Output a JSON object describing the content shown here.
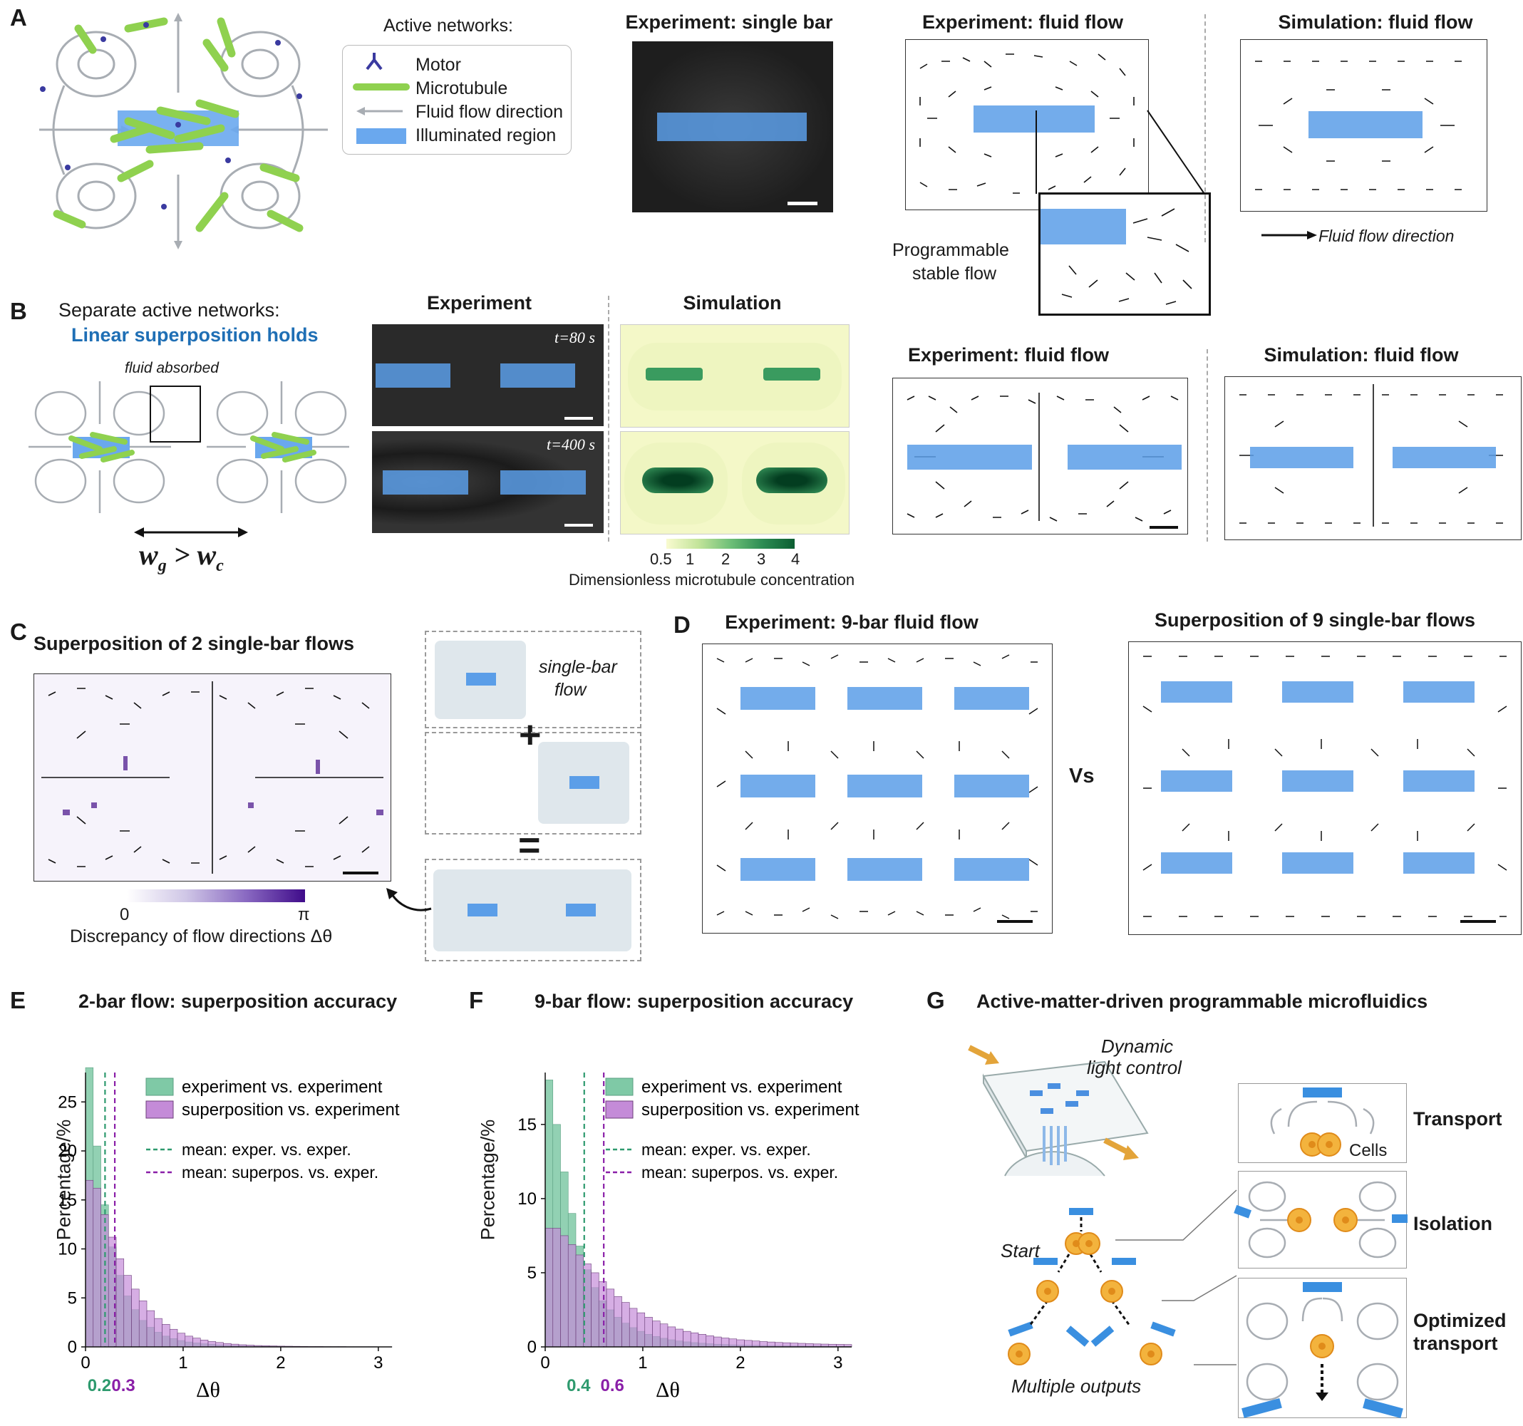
{
  "panels": {
    "A": {
      "letter": "A",
      "legend_title": "Active networks:",
      "legend_items": [
        {
          "label": "Motor",
          "icon": "motor-icon"
        },
        {
          "label": "Microtubule",
          "icon": "microtubule-icon"
        },
        {
          "label": "Fluid flow direction",
          "icon": "arrow-icon"
        },
        {
          "label": "Illuminated region",
          "icon": "blue-rect-icon"
        }
      ],
      "exp_single_bar_title": "Experiment: single bar",
      "exp_flow_title": "Experiment: fluid flow",
      "sim_flow_title": "Simulation: fluid flow",
      "inset_label_1": "Programmable",
      "inset_label_2": "stable flow",
      "flow_dir_label": "Fluid flow direction"
    },
    "B": {
      "letter": "B",
      "heading": "Separate active networks:",
      "subheading": "Linear superposition holds",
      "fluid_absorbed": "fluid absorbed",
      "w_g": "w",
      "w_g_sub": "g",
      "w_gt": ">",
      "w_c": "w",
      "w_c_sub": "c",
      "experiment_title": "Experiment",
      "simulation_title": "Simulation",
      "t1": "t=80 s",
      "t2": "t=400 s",
      "colorbar_ticks": [
        "0.5",
        "1",
        "2",
        "3",
        "4"
      ],
      "colorbar_label": "Dimensionless microtubule concentration",
      "exp_flow_title": "Experiment: fluid flow",
      "sim_flow_title": "Simulation: fluid flow"
    },
    "C": {
      "letter": "C",
      "title": "Superposition of 2 single-bar flows",
      "cb_min": "0",
      "cb_max": "π",
      "cb_label": "Discrepancy of flow directions Δθ",
      "single_bar_1": "single-bar",
      "single_bar_2": "flow",
      "plus": "+",
      "equals": "="
    },
    "D": {
      "letter": "D",
      "exp_title": "Experiment: 9-bar fluid flow",
      "sup_title": "Superposition of 9 single-bar flows",
      "vs": "Vs"
    },
    "E": {
      "letter": "E",
      "title": "2-bar flow: superposition accuracy",
      "ylabel": "Percentage/%",
      "xlabel": "Δθ",
      "mean_green": "0.2",
      "mean_purple": "0.3"
    },
    "F": {
      "letter": "F",
      "title": "9-bar flow: superposition accuracy",
      "ylabel": "Percentage/%",
      "xlabel": "Δθ",
      "mean_green": "0.4",
      "mean_purple": "0.6"
    },
    "G": {
      "letter": "G",
      "title": "Active-matter-driven programmable microfluidics",
      "dynamic_1": "Dynamic",
      "dynamic_2": "light control",
      "start": "Start",
      "multiple": "Multiple outputs",
      "cells": "Cells",
      "transport": "Transport",
      "isolation": "Isolation",
      "optimized_1": "Optimized",
      "optimized_2": "transport"
    }
  },
  "legend_common": {
    "exp_vs_exp": "experiment vs. experiment",
    "sup_vs_exp": "superposition vs. experiment",
    "mean_exp": "mean: exper. vs. exper.",
    "mean_sup": "mean: superpos. vs. exper."
  },
  "colors": {
    "green": "#2e9a6e",
    "green_fill": "#7fc9a6",
    "purple": "#8a1fa8",
    "purple_fill": "#c48bd8",
    "blue": "#5b9ee8",
    "mt_green": "#8fd14f",
    "motor": "#3a3aa0"
  },
  "chart_data": [
    {
      "type": "bar",
      "title": "2-bar flow: superposition accuracy",
      "xlabel": "Δθ",
      "ylabel": "Percentage/%",
      "xlim": [
        0,
        3.14
      ],
      "ylim": [
        0,
        28
      ],
      "xticks": [
        "0",
        "1",
        "2",
        "3"
      ],
      "yticks": [
        "0",
        "5",
        "10",
        "15",
        "20",
        "25"
      ],
      "bin_width": 0.0785,
      "series": [
        {
          "name": "experiment vs. experiment",
          "values": [
            28.5,
            20.5,
            14.5,
            10.2,
            7.3,
            5.2,
            3.8,
            2.7,
            2.0,
            1.5,
            1.1,
            0.85,
            0.65,
            0.5,
            0.4,
            0.32,
            0.26,
            0.2,
            0.16,
            0.13,
            0.1,
            0.08,
            0.07,
            0.06,
            0.05,
            0.04,
            0.04,
            0.03,
            0.03,
            0.02,
            0.02,
            0.02,
            0.02,
            0.02,
            0.01,
            0.01,
            0.01,
            0.01,
            0.01,
            0.01
          ]
        },
        {
          "name": "superposition vs. experiment",
          "values": [
            17.0,
            16.2,
            13.5,
            11.2,
            9.0,
            7.3,
            5.9,
            4.7,
            3.7,
            2.9,
            2.3,
            1.8,
            1.4,
            1.1,
            0.9,
            0.7,
            0.55,
            0.45,
            0.35,
            0.28,
            0.22,
            0.18,
            0.14,
            0.12,
            0.1,
            0.08,
            0.07,
            0.06,
            0.05,
            0.04,
            0.04,
            0.03,
            0.03,
            0.03,
            0.02,
            0.02,
            0.02,
            0.02,
            0.01,
            0.01
          ]
        }
      ],
      "means": [
        {
          "name": "mean: exper. vs. exper.",
          "value": 0.2
        },
        {
          "name": "mean: superpos. vs. exper.",
          "value": 0.3
        }
      ]
    },
    {
      "type": "bar",
      "title": "9-bar flow: superposition accuracy",
      "xlabel": "Δθ",
      "ylabel": "Percentage/%",
      "xlim": [
        0,
        3.14
      ],
      "ylim": [
        0,
        18.5
      ],
      "xticks": [
        "0",
        "1",
        "2",
        "3"
      ],
      "yticks": [
        "0",
        "5",
        "10",
        "15"
      ],
      "bin_width": 0.0785,
      "series": [
        {
          "name": "experiment vs. experiment",
          "values": [
            18.0,
            15.0,
            11.8,
            9.0,
            6.8,
            5.2,
            4.0,
            3.1,
            2.5,
            2.0,
            1.6,
            1.3,
            1.05,
            0.85,
            0.7,
            0.58,
            0.48,
            0.4,
            0.34,
            0.29,
            0.25,
            0.21,
            0.18,
            0.16,
            0.14,
            0.12,
            0.11,
            0.1,
            0.09,
            0.08,
            0.07,
            0.07,
            0.06,
            0.06,
            0.05,
            0.05,
            0.05,
            0.04,
            0.04,
            0.04
          ]
        },
        {
          "name": "superposition vs. experiment",
          "values": [
            8.0,
            8.0,
            7.5,
            6.9,
            6.2,
            5.6,
            5.0,
            4.4,
            3.9,
            3.4,
            3.0,
            2.6,
            2.3,
            2.0,
            1.75,
            1.55,
            1.35,
            1.2,
            1.05,
            0.95,
            0.85,
            0.75,
            0.67,
            0.6,
            0.54,
            0.48,
            0.44,
            0.4,
            0.36,
            0.33,
            0.3,
            0.28,
            0.26,
            0.24,
            0.22,
            0.2,
            0.19,
            0.18,
            0.17,
            0.16
          ]
        }
      ],
      "means": [
        {
          "name": "mean: exper. vs. exper.",
          "value": 0.4
        },
        {
          "name": "mean: superpos. vs. exper.",
          "value": 0.6
        }
      ]
    }
  ]
}
